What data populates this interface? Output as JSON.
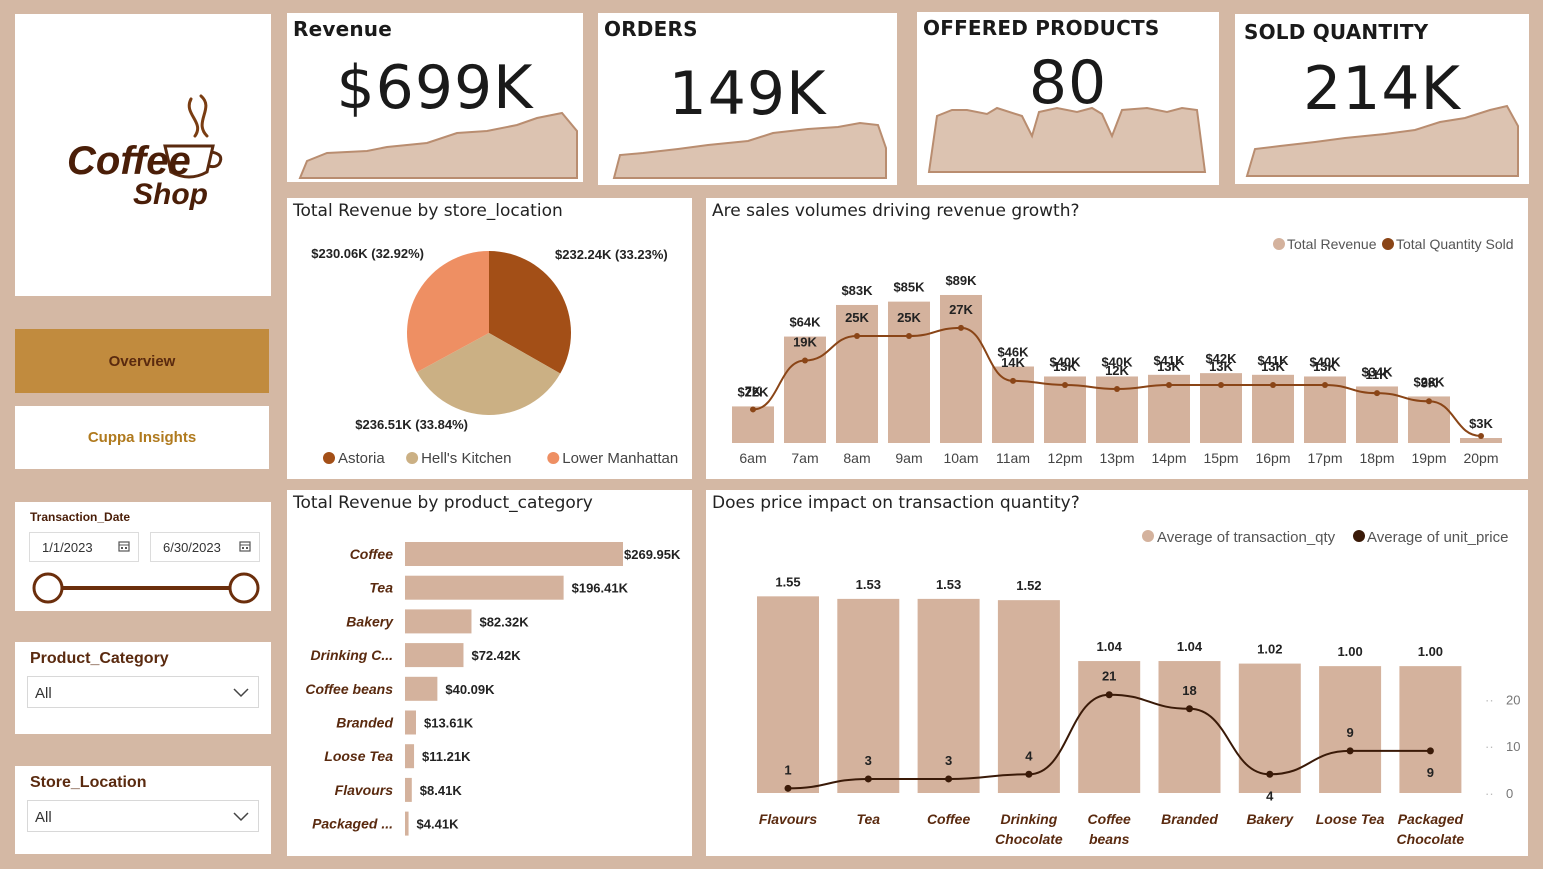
{
  "kpis": [
    {
      "title": "Revenue",
      "value": "$699K"
    },
    {
      "title": "ORDERS",
      "value": "149K"
    },
    {
      "title": "OFFERED PRODUCTS",
      "value": "80"
    },
    {
      "title": "SOLD QUANTITY",
      "value": "214K"
    }
  ],
  "logo": {
    "line1": "Coffee",
    "line2": "Shop"
  },
  "nav": {
    "overview": "Overview",
    "cuppa": "Cuppa Insights"
  },
  "slicers": {
    "date_label": "Transaction_Date",
    "date_start": "1/1/2023",
    "date_end": "6/30/2023",
    "product_label": "Product_Category",
    "product_value": "All",
    "store_label": "Store_Location",
    "store_value": "All"
  },
  "colors": {
    "accent": "#c18b3e",
    "background": "#d4b8a4",
    "bar": "#d4b29d",
    "line": "#8a4517",
    "astoria": "#a34f17",
    "hells_kitchen": "#cbb084",
    "lower_manhattan": "#ee8f63"
  },
  "chart_data": [
    {
      "id": "pie",
      "type": "pie",
      "title": "Total Revenue by store_location",
      "categories": [
        "Astoria",
        "Hell's Kitchen",
        "Lower Manhattan"
      ],
      "values": [
        232.24,
        236.51,
        230.06
      ],
      "labels": [
        "$232.24K (33.23%)",
        "$236.51K (33.84%)",
        "$230.06K (32.92%)"
      ],
      "legend": "bottom"
    },
    {
      "id": "hourly",
      "type": "bar",
      "title": "Are sales volumes driving revenue growth?",
      "categories": [
        "6am",
        "7am",
        "8am",
        "9am",
        "10am",
        "11am",
        "12pm",
        "13pm",
        "14pm",
        "15pm",
        "16pm",
        "17pm",
        "18pm",
        "19pm",
        "20pm"
      ],
      "series": [
        {
          "name": "Total Revenue",
          "type": "bar",
          "values": [
            22,
            64,
            83,
            85,
            89,
            46,
            40,
            40,
            41,
            42,
            41,
            40,
            34,
            28,
            3
          ],
          "labels": [
            "$22K",
            "$64K",
            "$83K",
            "$85K",
            "$89K",
            "$46K",
            "$40K",
            "$40K",
            "$41K",
            "$42K",
            "$41K",
            "$40K",
            "$34K",
            "$28K",
            "$3K"
          ]
        },
        {
          "name": "Total Quantity Sold",
          "type": "line",
          "values": [
            7,
            19,
            25,
            25,
            27,
            14,
            13,
            12,
            13,
            13,
            13,
            13,
            11,
            9,
            0.5
          ],
          "labels": [
            "7K",
            "19K",
            "25K",
            "25K",
            "27K",
            "14K",
            "13K",
            "12K",
            "13K",
            "13K",
            "13K",
            "13K",
            "11K",
            "9K",
            ""
          ]
        }
      ],
      "legend": "top-right"
    },
    {
      "id": "category",
      "type": "bar",
      "orientation": "horizontal",
      "title": "Total Revenue by product_category",
      "categories": [
        "Coffee",
        "Tea",
        "Bakery",
        "Drinking C...",
        "Coffee beans",
        "Branded",
        "Loose Tea",
        "Flavours",
        "Packaged ..."
      ],
      "values": [
        269.95,
        196.41,
        82.32,
        72.42,
        40.09,
        13.61,
        11.21,
        8.41,
        4.41
      ],
      "labels": [
        "$269.95K",
        "$196.41K",
        "$82.32K",
        "$72.42K",
        "$40.09K",
        "$13.61K",
        "$11.21K",
        "$8.41K",
        "$4.41K"
      ]
    },
    {
      "id": "price",
      "type": "bar",
      "title": "Does price impact on transaction quantity?",
      "categories": [
        [
          "Flavours"
        ],
        [
          "Tea"
        ],
        [
          "Coffee"
        ],
        [
          "Drinking",
          "Chocolate"
        ],
        [
          "Coffee",
          "beans"
        ],
        [
          "Branded"
        ],
        [
          "Bakery"
        ],
        [
          "Loose Tea"
        ],
        [
          "Packaged",
          "Chocolate"
        ]
      ],
      "series": [
        {
          "name": "Average of transaction_qty",
          "type": "bar",
          "values": [
            1.55,
            1.53,
            1.53,
            1.52,
            1.04,
            1.04,
            1.02,
            1.0,
            1.0
          ],
          "labels": [
            "1.55",
            "1.53",
            "1.53",
            "1.52",
            "1.04",
            "1.04",
            "1.02",
            "1.00",
            "1.00"
          ]
        },
        {
          "name": "Average of unit_price",
          "type": "line",
          "values": [
            1,
            3,
            3,
            4,
            21,
            18,
            4,
            9,
            9
          ],
          "labels": [
            "1",
            "3",
            "3",
            "4",
            "21",
            "18",
            "4",
            "9",
            "9"
          ]
        }
      ],
      "y2_ticks": [
        "20",
        "10",
        "0"
      ],
      "legend": "top-right"
    }
  ]
}
